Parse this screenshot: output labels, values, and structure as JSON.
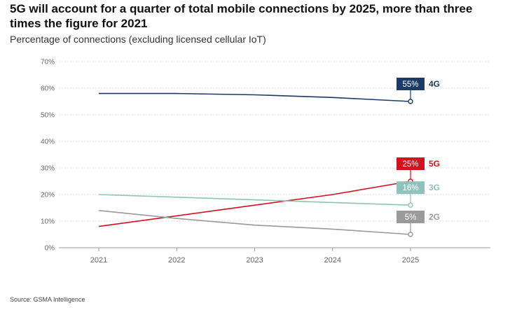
{
  "title": "5G will account for a quarter of total mobile connections by 2025, more than three times the figure for 2021",
  "subtitle": "Percentage of connections (excluding licensed cellular IoT)",
  "source": "Source: GSMA Intelligence",
  "chart_data": {
    "type": "line",
    "title": "5G will account for a quarter of total mobile connections by 2025, more than three times the figure for 2021",
    "subtitle": "Percentage of connections (excluding licensed cellular IoT)",
    "xlabel": "",
    "ylabel": "",
    "x": [
      "2021",
      "2022",
      "2023",
      "2024",
      "2025"
    ],
    "ylim": [
      0,
      70
    ],
    "yticks": [
      "0%",
      "10%",
      "20%",
      "30%",
      "40%",
      "50%",
      "60%",
      "70%"
    ],
    "grid": true,
    "series": [
      {
        "name": "4G",
        "color": "#1b3a66",
        "values": [
          58,
          58,
          57.5,
          56.5,
          55
        ],
        "end_label": "55%"
      },
      {
        "name": "5G",
        "color": "#d3121d",
        "values": [
          8,
          12,
          16,
          20,
          25
        ],
        "end_label": "25%"
      },
      {
        "name": "3G",
        "color": "#8fc2bd",
        "values": [
          20,
          19,
          18,
          17,
          16
        ],
        "end_label": "16%"
      },
      {
        "name": "2G",
        "color": "#9a9a9a",
        "values": [
          14,
          11,
          8.5,
          7,
          5
        ],
        "end_label": "5%"
      }
    ]
  }
}
